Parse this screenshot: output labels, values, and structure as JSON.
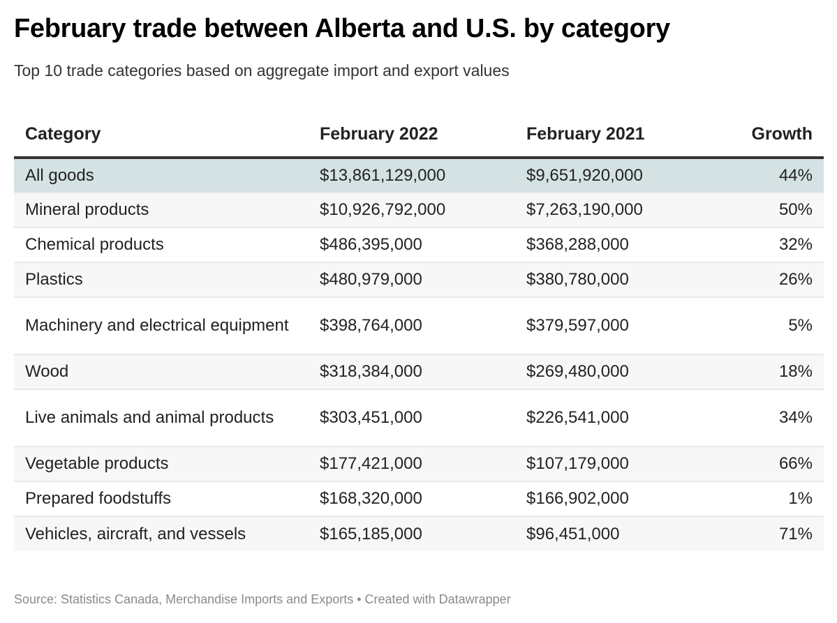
{
  "header": {
    "title": "February trade between Alberta and U.S. by category",
    "subtitle": "Top 10 trade categories based on aggregate import and export values"
  },
  "table": {
    "columns": [
      "Category",
      "February 2022",
      "February 2021",
      "Growth"
    ],
    "rows": [
      {
        "category": "All goods",
        "feb2022": "$13,861,129,000",
        "feb2021": "$9,651,920,000",
        "growth": "44%"
      },
      {
        "category": "Mineral products",
        "feb2022": "$10,926,792,000",
        "feb2021": "$7,263,190,000",
        "growth": "50%"
      },
      {
        "category": "Chemical products",
        "feb2022": "$486,395,000",
        "feb2021": "$368,288,000",
        "growth": "32%"
      },
      {
        "category": "Plastics",
        "feb2022": "$480,979,000",
        "feb2021": "$380,780,000",
        "growth": "26%"
      },
      {
        "category": "Machinery and electrical equipment",
        "feb2022": "$398,764,000",
        "feb2021": "$379,597,000",
        "growth": "5%"
      },
      {
        "category": "Wood",
        "feb2022": "$318,384,000",
        "feb2021": "$269,480,000",
        "growth": "18%"
      },
      {
        "category": "Live animals and animal products",
        "feb2022": "$303,451,000",
        "feb2021": "$226,541,000",
        "growth": "34%"
      },
      {
        "category": "Vegetable products",
        "feb2022": "$177,421,000",
        "feb2021": "$107,179,000",
        "growth": "66%"
      },
      {
        "category": "Prepared foodstuffs",
        "feb2022": "$168,320,000",
        "feb2021": "$166,902,000",
        "growth": "1%"
      },
      {
        "category": "Vehicles, aircraft, and vessels",
        "feb2022": "$165,185,000",
        "feb2021": "$96,451,000",
        "growth": "71%"
      }
    ]
  },
  "footer": {
    "source": "Source: Statistics Canada, Merchandise Imports and Exports • Created with Datawrapper"
  },
  "colors": {
    "highlight_row": "#d5e2e4",
    "stripe_row": "#f7f7f7",
    "header_rule": "#333333",
    "source_text": "#8a8a8a"
  },
  "chart_data": {
    "type": "table",
    "title": "February trade between Alberta and U.S. by category",
    "subtitle": "Top 10 trade categories based on aggregate import and export values",
    "columns": [
      "Category",
      "February 2022",
      "February 2021",
      "Growth"
    ],
    "categories": [
      "All goods",
      "Mineral products",
      "Chemical products",
      "Plastics",
      "Machinery and electrical equipment",
      "Wood",
      "Live animals and animal products",
      "Vegetable products",
      "Prepared foodstuffs",
      "Vehicles, aircraft, and vessels"
    ],
    "series": [
      {
        "name": "February 2022",
        "values": [
          13861129000,
          10926792000,
          486395000,
          480979000,
          398764000,
          318384000,
          303451000,
          177421000,
          168320000,
          165185000
        ]
      },
      {
        "name": "February 2021",
        "values": [
          9651920000,
          7263190000,
          368288000,
          380780000,
          379597000,
          269480000,
          226541000,
          107179000,
          166902000,
          96451000
        ]
      },
      {
        "name": "Growth (%)",
        "values": [
          44,
          50,
          32,
          26,
          5,
          18,
          34,
          66,
          1,
          71
        ]
      }
    ],
    "source": "Source: Statistics Canada, Merchandise Imports and Exports • Created with Datawrapper"
  }
}
